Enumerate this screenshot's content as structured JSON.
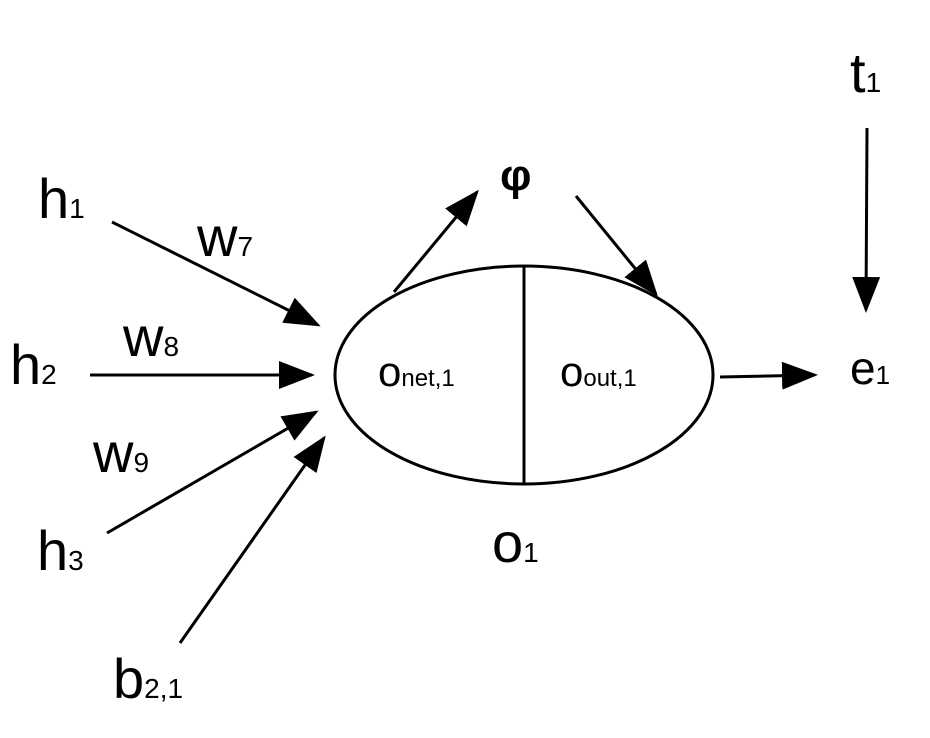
{
  "nodes": {
    "h1": {
      "main": "h",
      "sub": "1"
    },
    "h2": {
      "main": "h",
      "sub": "2"
    },
    "h3": {
      "main": "h",
      "sub": "3"
    },
    "b21": {
      "main": "b",
      "sub": "2,1"
    },
    "t1": {
      "main": "t",
      "sub": "1"
    },
    "e1": {
      "main": "e",
      "sub": "1"
    },
    "o1": {
      "main": "o",
      "sub": "1"
    },
    "phi": {
      "main": "φ"
    },
    "onet": {
      "main": "o",
      "sub": "net,1"
    },
    "oout": {
      "main": "o",
      "sub": "out,1"
    }
  },
  "weights": {
    "w7": {
      "main": "w",
      "sub": "7"
    },
    "w8": {
      "main": "w",
      "sub": "8"
    },
    "w9": {
      "main": "w",
      "sub": "9"
    }
  }
}
